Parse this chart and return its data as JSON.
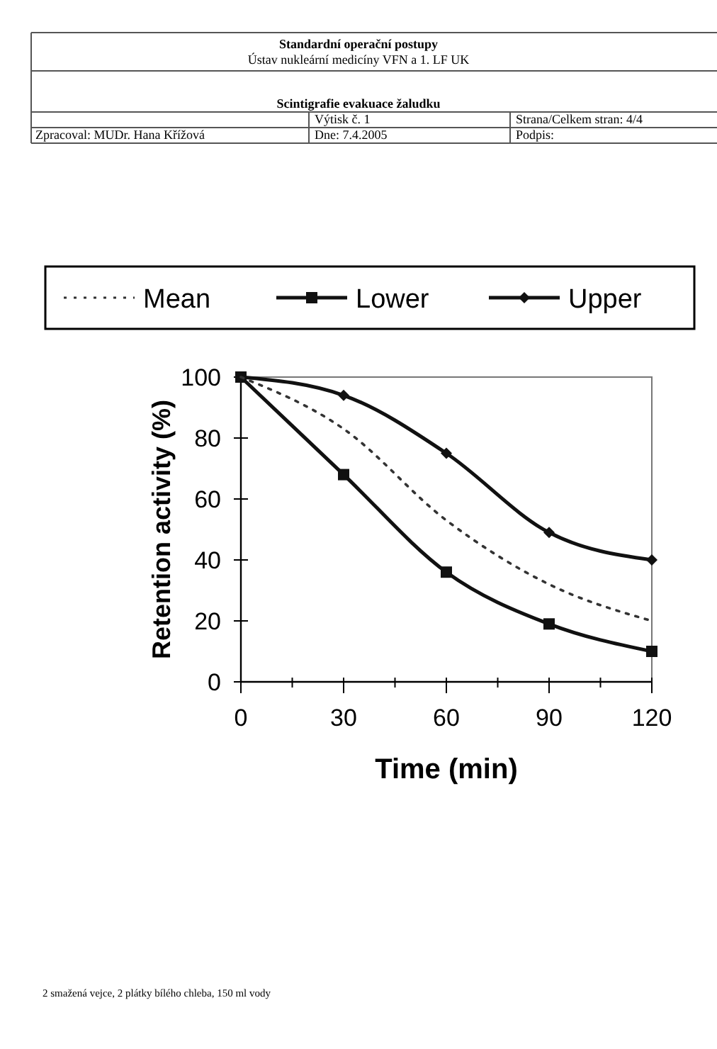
{
  "chart_data": {
    "type": "line",
    "xlabel": "Time (min)",
    "ylabel": "Retention activity (%)",
    "x": [
      0,
      30,
      60,
      90,
      120
    ],
    "series": [
      {
        "name": "Mean",
        "color": "#333333",
        "values": [
          100,
          83,
          53,
          32,
          20
        ],
        "line_style": "dotted",
        "marker": "none"
      },
      {
        "name": "Lower",
        "color": "#111111",
        "values": [
          100,
          68,
          36,
          19,
          10
        ],
        "marker": "square"
      },
      {
        "name": "Upper",
        "color": "#111111",
        "values": [
          100,
          94,
          75,
          49,
          40
        ],
        "marker": "diamond"
      }
    ],
    "xlim": [
      0,
      120
    ],
    "xticks": [
      0,
      {
        "value": 15,
        "label": null
      },
      30,
      {
        "value": 45,
        "label": null
      },
      60,
      {
        "value": 75,
        "label": null
      },
      90,
      {
        "value": 105,
        "label": null
      },
      120
    ],
    "ylim": [
      0,
      100
    ],
    "yticks": [
      0,
      20,
      40,
      60,
      80,
      100
    ],
    "grid": false,
    "legend": "top",
    "annotations": [
      "Standardní operační postupy",
      "Ústav nukleární medicíny  VFN a 1. LF UK",
      "Scintigrafie evakuace žaludku",
      "Výtisk č.  1",
      "Strana/Celkem stran:  4/4",
      "Zpracoval: MUDr. Hana Křížová",
      "Dne: 7.4.2005",
      "Podpis:",
      "2 smažená vejce, 2 plátky bílého chleba, 150 ml vody"
    ]
  }
}
